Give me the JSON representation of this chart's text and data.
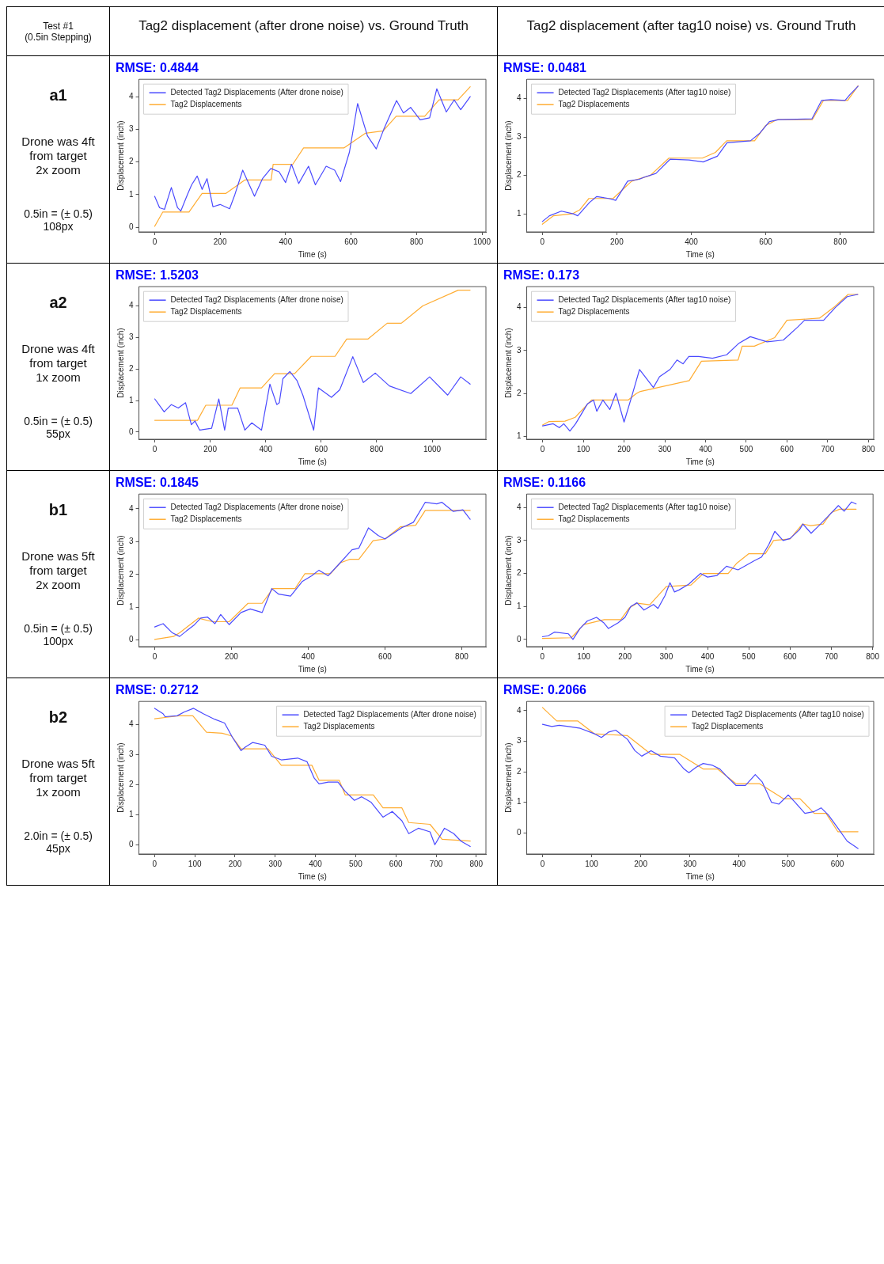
{
  "chart_data": [
    {
      "type": "other",
      "annotations": [
        "Test #1",
        "(0.5in Stepping)"
      ]
    },
    {
      "type": "other",
      "title": "Tag2 displacement (after drone noise)  vs. Ground Truth"
    },
    {
      "type": "other",
      "title": "Tag2 displacement (after tag10 noise)  vs. Ground Truth"
    },
    {
      "type": "other",
      "title": "a1",
      "annotations": [
        "Drone was 4ft from target",
        "2x zoom",
        "0.5in = (± 0.5) 108px"
      ]
    },
    {
      "type": "line",
      "title": "RMSE: 0.4844",
      "xlabel": "Time (s)",
      "ylabel": "Displacement (inch)",
      "legend": "top left",
      "xlim": [
        -48,
        1012
      ],
      "xticks": [
        0,
        200,
        400,
        600,
        800,
        1000
      ],
      "ylim": [
        -0.14,
        4.53
      ],
      "yticks": [
        0,
        1,
        2,
        3,
        4
      ],
      "series": [
        {
          "name": "Detected Tag2 Displacements (After drone noise)",
          "color": "#4b4bff",
          "x": [
            0,
            15,
            30,
            51,
            70,
            80,
            100,
            113,
            130,
            145,
            160,
            178,
            200,
            229,
            245,
            269,
            305,
            330,
            355,
            380,
            400,
            418,
            440,
            470,
            491,
            524,
            550,
            568,
            595,
            620,
            650,
            677,
            700,
            739,
            760,
            782,
            811,
            840,
            862,
            891,
            915,
            935,
            964
          ],
          "values": [
            0.95,
            0.6,
            0.55,
            1.22,
            0.6,
            0.5,
            1.0,
            1.3,
            1.57,
            1.16,
            1.49,
            0.63,
            0.7,
            0.57,
            1.0,
            1.75,
            0.95,
            1.5,
            1.8,
            1.7,
            1.37,
            1.93,
            1.34,
            1.87,
            1.3,
            1.87,
            1.75,
            1.4,
            2.3,
            3.79,
            2.8,
            2.4,
            3.0,
            3.88,
            3.5,
            3.67,
            3.29,
            3.35,
            4.24,
            3.53,
            3.9,
            3.6,
            4.0
          ]
        },
        {
          "name": "Tag2 Displacements",
          "color": "#ffad33",
          "x": [
            0,
            25,
            105,
            145,
            218,
            276,
            356,
            362,
            422,
            455,
            578,
            644,
            698,
            738,
            825,
            869,
            927,
            964
          ],
          "values": [
            0.03,
            0.47,
            0.47,
            1.04,
            1.04,
            1.45,
            1.45,
            1.93,
            1.93,
            2.43,
            2.43,
            2.88,
            2.95,
            3.4,
            3.4,
            3.9,
            3.9,
            4.3
          ]
        }
      ]
    },
    {
      "type": "line",
      "title": "RMSE: 0.0481",
      "xlabel": "Time (s)",
      "ylabel": "Displacement (inch)",
      "legend": "top left",
      "xlim": [
        -42,
        890
      ],
      "xticks": [
        0,
        200,
        400,
        600,
        800
      ],
      "ylim": [
        0.53,
        4.5
      ],
      "yticks": [
        1,
        2,
        3,
        4
      ],
      "series": [
        {
          "name": "Detected Tag2 Displacements (After tag10 noise)",
          "color": "#4b4bff",
          "x": [
            0,
            19,
            51,
            83,
            95,
            127,
            146,
            178,
            197,
            229,
            260,
            273,
            305,
            343,
            394,
            432,
            470,
            496,
            559,
            584,
            610,
            635,
            724,
            750,
            775,
            813,
            826,
            848
          ],
          "values": [
            0.8,
            0.95,
            1.07,
            1.0,
            0.95,
            1.3,
            1.45,
            1.4,
            1.35,
            1.85,
            1.9,
            1.95,
            2.05,
            2.42,
            2.4,
            2.35,
            2.5,
            2.85,
            2.9,
            3.1,
            3.4,
            3.45,
            3.47,
            3.95,
            3.97,
            3.95,
            4.1,
            4.32
          ]
        },
        {
          "name": "Tag2 Displacements",
          "color": "#ffad33",
          "x": [
            0,
            30,
            80,
            100,
            125,
            190,
            240,
            290,
            340,
            430,
            465,
            495,
            570,
            600,
            630,
            725,
            755,
            820,
            848
          ],
          "values": [
            0.73,
            0.95,
            1.0,
            1.1,
            1.4,
            1.4,
            1.85,
            2.0,
            2.45,
            2.45,
            2.6,
            2.9,
            2.9,
            3.3,
            3.45,
            3.45,
            3.95,
            3.95,
            4.33
          ]
        }
      ]
    },
    {
      "type": "other",
      "title": "a2",
      "annotations": [
        "Drone was 4ft from target",
        "1x zoom",
        "0.5in = (± 0.5) 55px"
      ]
    },
    {
      "type": "line",
      "title": "RMSE: 1.5203",
      "xlabel": "Time (s)",
      "ylabel": "Displacement (inch)",
      "legend": "top left",
      "xlim": [
        -57,
        1194
      ],
      "xticks": [
        0,
        200,
        400,
        600,
        800,
        1000
      ],
      "ylim": [
        -0.23,
        4.61
      ],
      "yticks": [
        0,
        1,
        2,
        3,
        4
      ],
      "series": [
        {
          "name": "Detected Tag2 Displacements (After drone noise)",
          "color": "#4b4bff",
          "x": [
            0,
            34,
            60,
            85,
            111,
            132,
            145,
            162,
            205,
            231,
            252,
            265,
            299,
            325,
            350,
            385,
            415,
            440,
            449,
            462,
            487,
            513,
            534,
            573,
            590,
            637,
            667,
            714,
            752,
            795,
            846,
            923,
            991,
            1056,
            1103,
            1137
          ],
          "values": [
            1.05,
            0.64,
            0.87,
            0.76,
            0.93,
            0.23,
            0.35,
            0.06,
            0.12,
            1.05,
            0.06,
            0.76,
            0.76,
            0.06,
            0.29,
            0.06,
            1.52,
            0.87,
            0.93,
            1.69,
            1.92,
            1.63,
            1.17,
            0.06,
            1.4,
            1.1,
            1.34,
            2.39,
            1.57,
            1.87,
            1.46,
            1.22,
            1.75,
            1.17,
            1.75,
            1.52
          ]
        },
        {
          "name": "Tag2 Displacements",
          "color": "#ffad33",
          "x": [
            0,
            154,
            184,
            278,
            308,
            385,
            432,
            504,
            564,
            650,
            692,
            769,
            838,
            889,
            966,
            1094,
            1137
          ],
          "values": [
            0.37,
            0.37,
            0.85,
            0.85,
            1.4,
            1.4,
            1.85,
            1.85,
            2.4,
            2.4,
            2.95,
            2.95,
            3.45,
            3.45,
            4.0,
            4.5,
            4.5
          ]
        }
      ]
    },
    {
      "type": "line",
      "title": "RMSE: 0.173",
      "xlabel": "Time (s)",
      "ylabel": "Displacement (inch)",
      "legend": "top left",
      "xlim": [
        -39,
        813
      ],
      "xticks": [
        0,
        100,
        200,
        300,
        400,
        500,
        600,
        700,
        800
      ],
      "ylim": [
        0.94,
        4.48
      ],
      "yticks": [
        1,
        2,
        3,
        4
      ],
      "series": [
        {
          "name": "Detected Tag2 Displacements (After tag10 noise)",
          "color": "#4b4bff",
          "x": [
            0,
            26,
            41,
            52,
            67,
            81,
            110,
            125,
            133,
            148,
            165,
            180,
            200,
            220,
            238,
            272,
            287,
            313,
            330,
            345,
            359,
            383,
            417,
            452,
            481,
            510,
            551,
            591,
            626,
            643,
            690,
            719,
            748,
            774
          ],
          "values": [
            1.25,
            1.3,
            1.21,
            1.3,
            1.13,
            1.3,
            1.76,
            1.85,
            1.59,
            1.85,
            1.63,
            2.01,
            1.34,
            1.97,
            2.56,
            2.14,
            2.39,
            2.56,
            2.78,
            2.69,
            2.86,
            2.86,
            2.82,
            2.9,
            3.16,
            3.32,
            3.2,
            3.24,
            3.54,
            3.7,
            3.7,
            4.0,
            4.25,
            4.3
          ]
        },
        {
          "name": "Tag2 Displacements",
          "color": "#ffad33",
          "x": [
            0,
            15,
            55,
            80,
            110,
            120,
            210,
            230,
            240,
            360,
            390,
            480,
            490,
            520,
            570,
            600,
            680,
            715,
            750,
            774
          ],
          "values": [
            1.27,
            1.35,
            1.36,
            1.45,
            1.75,
            1.85,
            1.85,
            2.0,
            2.05,
            2.3,
            2.75,
            2.78,
            3.1,
            3.1,
            3.3,
            3.7,
            3.75,
            4.0,
            4.3,
            4.3
          ]
        }
      ]
    },
    {
      "type": "other",
      "title": "b1",
      "annotations": [
        "Drone was 5ft from target",
        "2x zoom",
        "0.5in = (± 0.5) 100px"
      ]
    },
    {
      "type": "line",
      "title": "RMSE: 0.1845",
      "xlabel": "Time (s)",
      "ylabel": "Displacement (inch)",
      "legend": "top left",
      "xlim": [
        -41,
        863
      ],
      "xticks": [
        0,
        200,
        400,
        600,
        800
      ],
      "ylim": [
        -0.2,
        4.45
      ],
      "yticks": [
        0,
        1,
        2,
        3,
        4
      ],
      "series": [
        {
          "name": "Detected Tag2 Displacements (After drone noise)",
          "color": "#4b4bff",
          "x": [
            0,
            22,
            46,
            65,
            83,
            102,
            120,
            138,
            157,
            172,
            194,
            225,
            249,
            280,
            305,
            323,
            354,
            385,
            409,
            428,
            452,
            483,
            514,
            532,
            557,
            582,
            600,
            643,
            674,
            705,
            735,
            748,
            778,
            803,
            822
          ],
          "values": [
            0.4,
            0.5,
            0.22,
            0.11,
            0.28,
            0.45,
            0.67,
            0.7,
            0.5,
            0.78,
            0.47,
            0.84,
            0.95,
            0.84,
            1.57,
            1.4,
            1.34,
            1.79,
            1.96,
            2.13,
            1.96,
            2.35,
            2.75,
            2.8,
            3.42,
            3.19,
            3.08,
            3.42,
            3.59,
            4.2,
            4.15,
            4.2,
            3.92,
            3.97,
            3.68
          ]
        },
        {
          "name": "Tag2 Displacements",
          "color": "#ffad33",
          "x": [
            0,
            49,
            65,
            114,
            151,
            194,
            243,
            280,
            308,
            366,
            391,
            458,
            483,
            508,
            532,
            569,
            600,
            640,
            680,
            705,
            822
          ],
          "values": [
            0.02,
            0.11,
            0.22,
            0.67,
            0.56,
            0.56,
            1.12,
            1.12,
            1.57,
            1.57,
            2.02,
            2.02,
            2.35,
            2.46,
            2.46,
            3.03,
            3.08,
            3.45,
            3.5,
            3.95,
            3.95
          ]
        }
      ]
    },
    {
      "type": "line",
      "title": "RMSE: 0.1166",
      "xlabel": "Time (s)",
      "ylabel": "Displacement (inch)",
      "legend": "top left",
      "xlim": [
        -38,
        801
      ],
      "xticks": [
        0,
        100,
        200,
        300,
        400,
        500,
        600,
        700,
        800
      ],
      "ylim": [
        -0.22,
        4.41
      ],
      "yticks": [
        0,
        1,
        2,
        3,
        4
      ],
      "series": [
        {
          "name": "Detected Tag2 Displacements (After tag10 noise)",
          "color": "#4b4bff",
          "x": [
            0,
            14,
            29,
            63,
            74,
            91,
            109,
            131,
            149,
            160,
            183,
            200,
            214,
            229,
            246,
            269,
            280,
            297,
            309,
            320,
            331,
            354,
            383,
            400,
            423,
            446,
            474,
            514,
            531,
            549,
            563,
            583,
            600,
            623,
            631,
            651,
            669,
            691,
            717,
            731,
            749,
            760
          ],
          "values": [
            0.08,
            0.11,
            0.22,
            0.17,
            0.0,
            0.33,
            0.56,
            0.67,
            0.5,
            0.33,
            0.5,
            0.67,
            1.0,
            1.11,
            0.89,
            1.06,
            0.94,
            1.33,
            1.72,
            1.44,
            1.5,
            1.67,
            2.0,
            1.89,
            1.94,
            2.22,
            2.11,
            2.39,
            2.5,
            2.89,
            3.28,
            3.0,
            3.06,
            3.33,
            3.5,
            3.22,
            3.44,
            3.72,
            4.06,
            3.89,
            4.17,
            4.11
          ]
        },
        {
          "name": "Tag2 Displacements",
          "color": "#ffad33",
          "x": [
            0,
            70,
            100,
            150,
            190,
            210,
            230,
            260,
            300,
            360,
            390,
            450,
            470,
            500,
            540,
            560,
            600,
            630,
            650,
            680,
            700,
            720,
            760
          ],
          "values": [
            0.03,
            0.05,
            0.45,
            0.6,
            0.6,
            0.95,
            1.1,
            1.05,
            1.6,
            1.65,
            2.0,
            2.0,
            2.3,
            2.6,
            2.6,
            3.0,
            3.05,
            3.5,
            3.45,
            3.5,
            3.85,
            3.95,
            3.95
          ]
        }
      ]
    },
    {
      "type": "other",
      "title": "b2",
      "annotations": [
        "Drone was 5ft from target",
        "1x zoom",
        "2.0in = (± 0.5) 45px"
      ]
    },
    {
      "type": "line",
      "title": "RMSE: 0.2712",
      "xlabel": "Time (s)",
      "ylabel": "Displacement (inch)",
      "legend": "top right",
      "xlim": [
        -39,
        824
      ],
      "xticks": [
        0,
        100,
        200,
        300,
        400,
        500,
        600,
        700,
        800
      ],
      "ylim": [
        -0.31,
        4.78
      ],
      "yticks": [
        0,
        1,
        2,
        3,
        4
      ],
      "series": [
        {
          "name": "Detected Tag2 Displacements (After drone noise)",
          "color": "#4b4bff",
          "x": [
            0,
            21,
            26,
            56,
            74,
            97,
            121,
            150,
            174,
            194,
            215,
            226,
            244,
            274,
            291,
            315,
            356,
            379,
            397,
            409,
            432,
            456,
            474,
            497,
            515,
            538,
            568,
            591,
            615,
            632,
            656,
            685,
            697,
            721,
            744,
            762,
            785
          ],
          "values": [
            4.55,
            4.37,
            4.27,
            4.3,
            4.43,
            4.55,
            4.37,
            4.18,
            4.06,
            3.57,
            3.14,
            3.26,
            3.41,
            3.32,
            2.95,
            2.83,
            2.89,
            2.77,
            2.22,
            2.03,
            2.09,
            2.09,
            1.78,
            1.48,
            1.6,
            1.42,
            0.92,
            1.11,
            0.8,
            0.37,
            0.55,
            0.43,
            0.0,
            0.55,
            0.37,
            0.12,
            -0.06
          ]
        },
        {
          "name": "Tag2 Displacements",
          "color": "#ffad33",
          "x": [
            0,
            30,
            60,
            95,
            129,
            168,
            191,
            215,
            282,
            315,
            391,
            409,
            459,
            474,
            544,
            568,
            615,
            632,
            685,
            715,
            785
          ],
          "values": [
            4.2,
            4.25,
            4.3,
            4.3,
            3.75,
            3.72,
            3.63,
            3.2,
            3.2,
            2.65,
            2.65,
            2.15,
            2.15,
            1.66,
            1.66,
            1.23,
            1.23,
            0.74,
            0.68,
            0.18,
            0.12
          ]
        }
      ]
    },
    {
      "type": "line",
      "title": "RMSE: 0.2066",
      "xlabel": "Time (s)",
      "ylabel": "Displacement (inch)",
      "legend": "top right",
      "xlim": [
        -32,
        674
      ],
      "xticks": [
        0,
        100,
        200,
        300,
        400,
        500,
        600
      ],
      "ylim": [
        -0.69,
        4.3
      ],
      "yticks": [
        0,
        1,
        2,
        3,
        4
      ],
      "series": [
        {
          "name": "Detected Tag2 Displacements (After tag10 noise)",
          "color": "#4b4bff",
          "x": [
            0,
            19,
            34,
            53,
            77,
            106,
            120,
            135,
            149,
            173,
            188,
            202,
            221,
            240,
            269,
            288,
            298,
            313,
            327,
            346,
            361,
            375,
            394,
            413,
            433,
            447,
            466,
            481,
            500,
            514,
            534,
            553,
            567,
            582,
            601,
            620,
            642
          ],
          "values": [
            3.55,
            3.48,
            3.52,
            3.48,
            3.42,
            3.24,
            3.12,
            3.3,
            3.36,
            3.06,
            2.69,
            2.51,
            2.69,
            2.51,
            2.45,
            2.09,
            1.97,
            2.15,
            2.27,
            2.21,
            2.09,
            1.85,
            1.55,
            1.55,
            1.91,
            1.67,
            1.0,
            0.94,
            1.24,
            1.0,
            0.64,
            0.7,
            0.82,
            0.58,
            0.16,
            -0.27,
            -0.51
          ]
        },
        {
          "name": "Tag2 Displacements",
          "color": "#ffad33",
          "x": [
            0,
            29,
            72,
            106,
            173,
            221,
            279,
            327,
            356,
            394,
            442,
            490,
            524,
            553,
            577,
            601,
            642
          ],
          "values": [
            4.1,
            3.66,
            3.66,
            3.24,
            3.18,
            2.57,
            2.57,
            2.09,
            2.09,
            1.61,
            1.61,
            1.12,
            1.12,
            0.64,
            0.64,
            0.04,
            0.04
          ]
        }
      ]
    }
  ]
}
